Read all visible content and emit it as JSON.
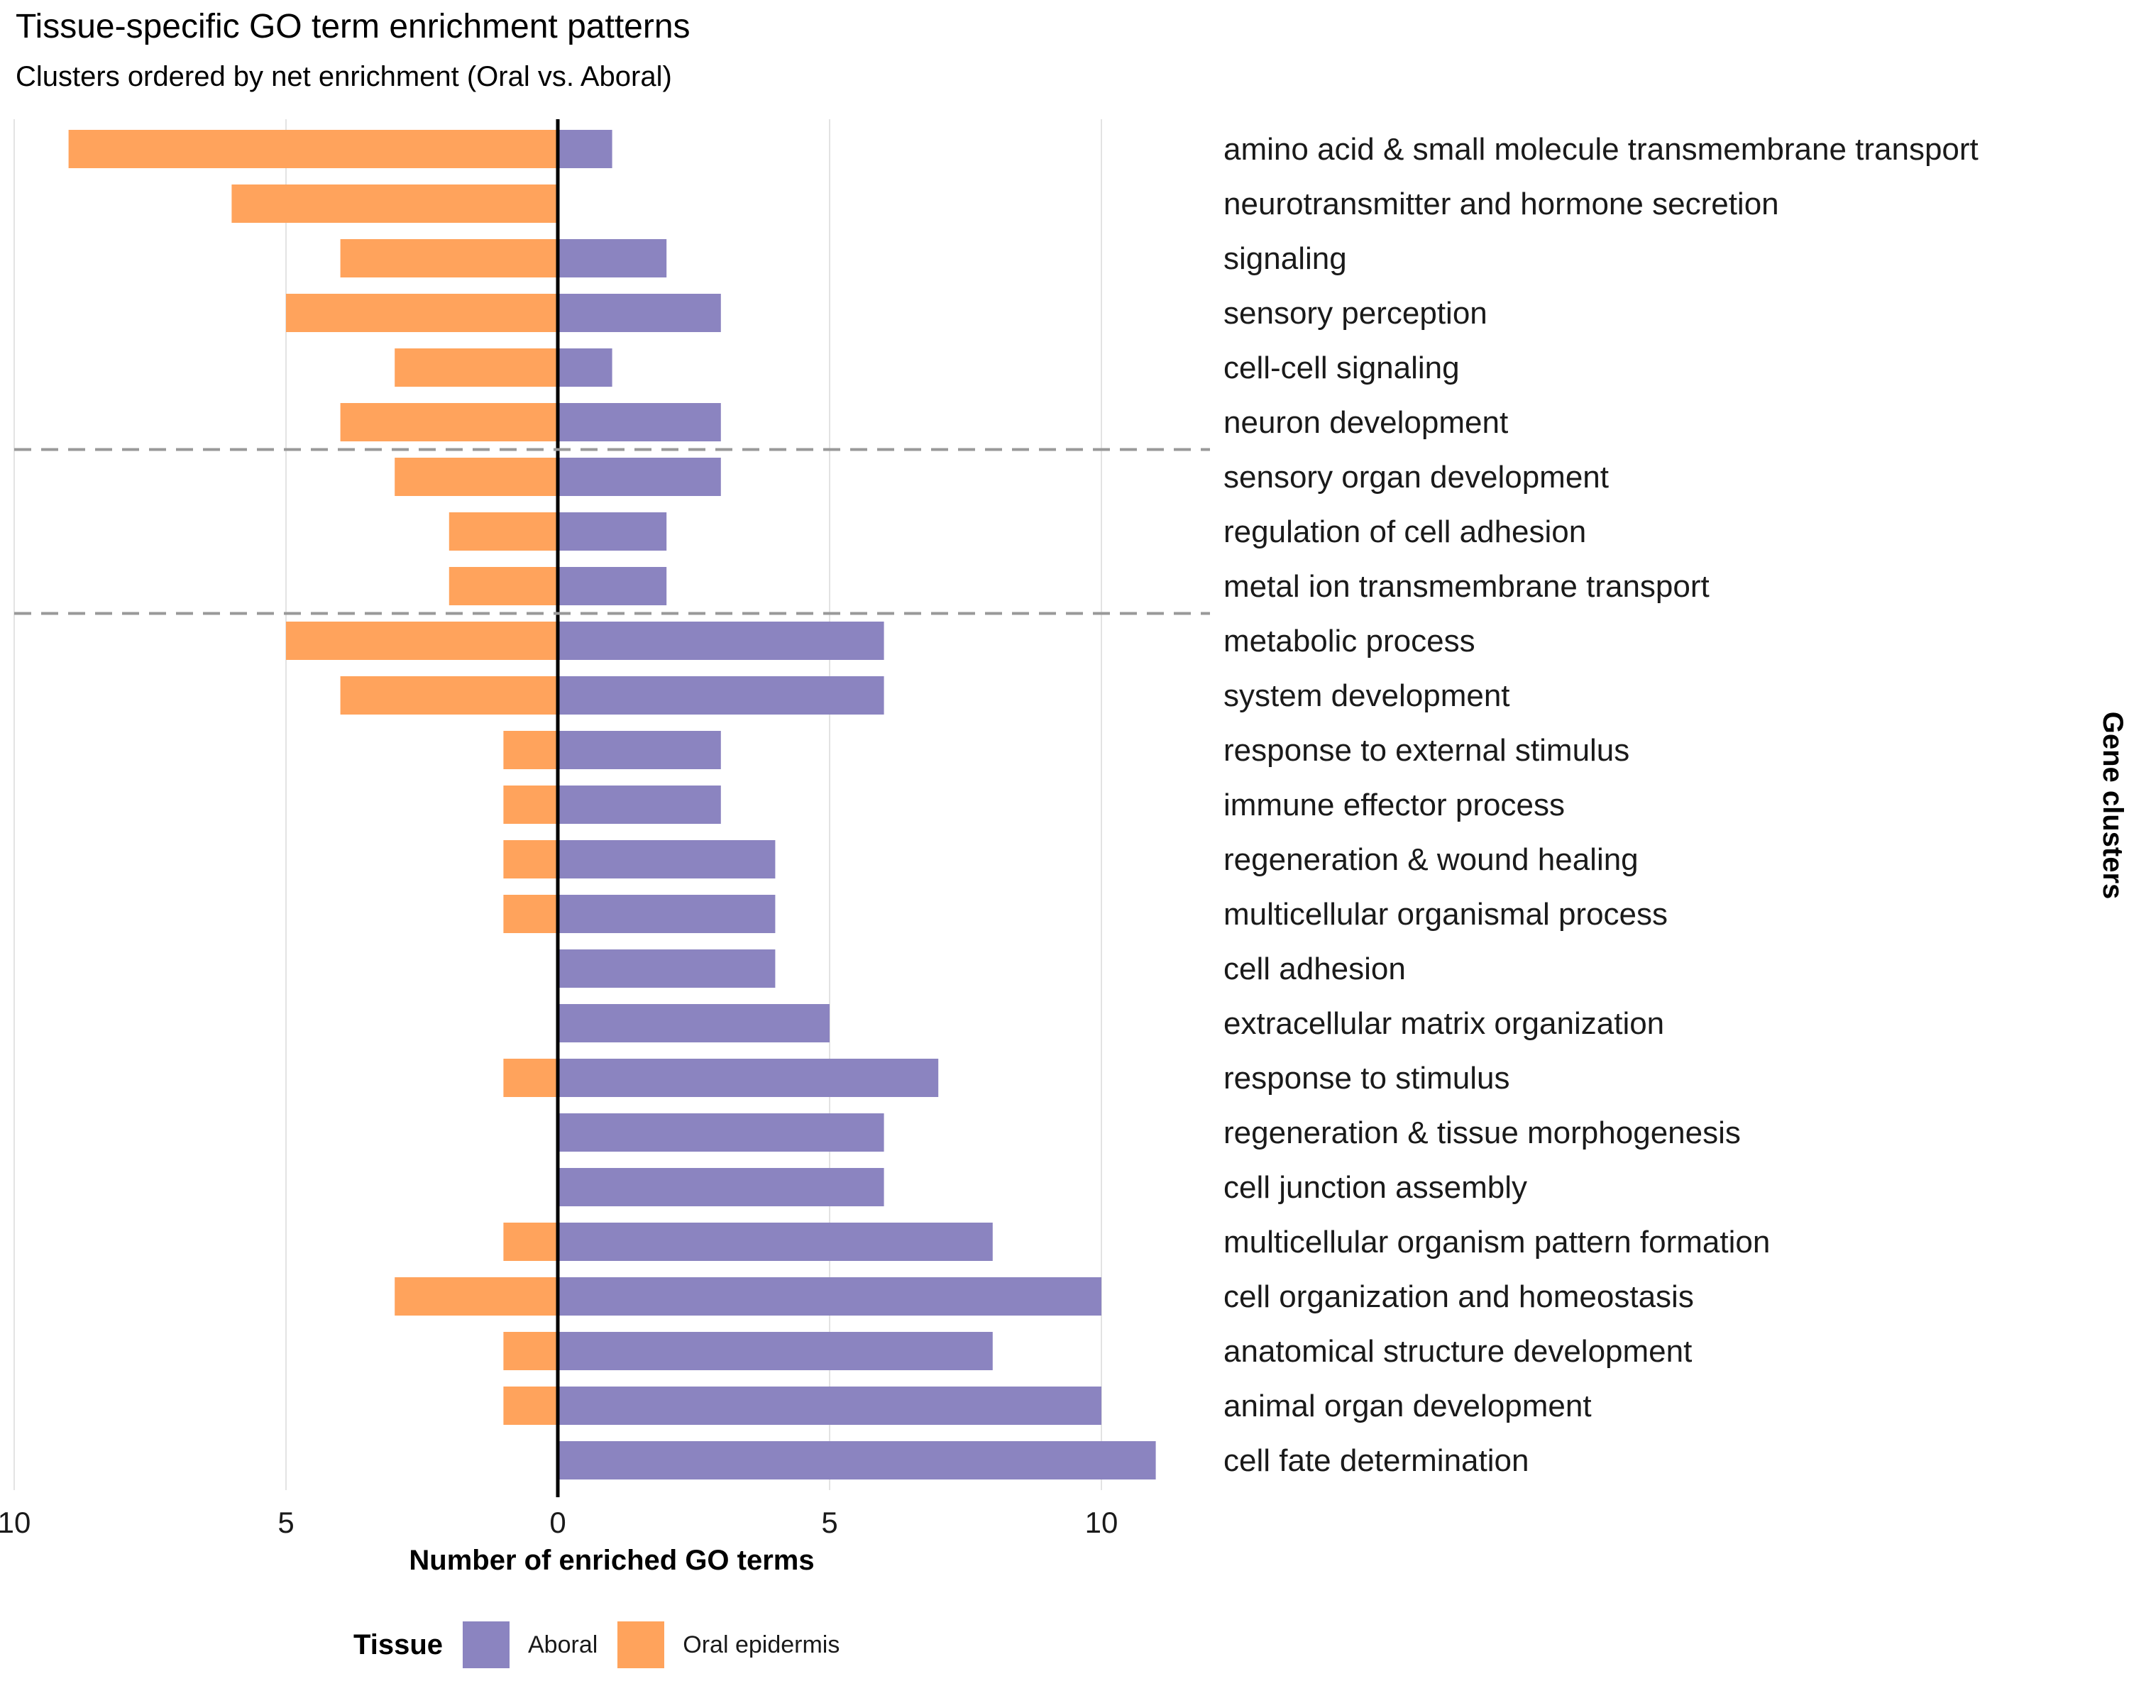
{
  "chart_data": {
    "type": "bar",
    "orientation": "horizontal-diverging",
    "title": "Tissue-specific GO term enrichment patterns",
    "subtitle": "Clusters ordered by net enrichment (Oral vs. Aboral)",
    "xlabel": "Number of enriched GO terms",
    "ylabel": "Gene clusters",
    "xlim": [
      -10,
      11.5
    ],
    "x_ticks": [
      -10,
      -5,
      0,
      5,
      10
    ],
    "x_tick_labels": [
      "10",
      "5",
      "0",
      "5",
      "10"
    ],
    "grid": true,
    "divider_after_index": [
      5,
      8
    ],
    "categories": [
      "amino acid & small molecule transmembrane transport",
      "neurotransmitter and hormone secretion",
      "signaling",
      "sensory perception",
      "cell-cell signaling",
      "neuron development",
      "sensory organ development",
      "regulation of cell adhesion",
      "metal ion transmembrane transport",
      "metabolic process",
      "system development",
      "response to external stimulus",
      "immune effector process",
      "regeneration & wound healing",
      "multicellular organismal process",
      "cell adhesion",
      "extracellular matrix organization",
      "response to stimulus",
      "regeneration & tissue morphogenesis",
      "cell junction assembly",
      "multicellular organism pattern formation",
      "cell organization and homeostasis",
      "anatomical structure development",
      "animal organ development",
      "cell fate determination"
    ],
    "series": [
      {
        "name": "Aboral",
        "color": "#8b84c0",
        "values": [
          1,
          0,
          2,
          3,
          1,
          3,
          3,
          2,
          2,
          6,
          6,
          3,
          3,
          4,
          4,
          4,
          5,
          7,
          6,
          6,
          8,
          10,
          8,
          10,
          11
        ]
      },
      {
        "name": "Oral epidermis",
        "color": "#ffa35c",
        "values": [
          9,
          6,
          4,
          5,
          3,
          4,
          3,
          2,
          2,
          5,
          4,
          1,
          1,
          1,
          1,
          0,
          0,
          1,
          0,
          0,
          1,
          3,
          1,
          1,
          0
        ]
      }
    ],
    "legend": {
      "title": "Tissue",
      "position": "bottom"
    }
  }
}
